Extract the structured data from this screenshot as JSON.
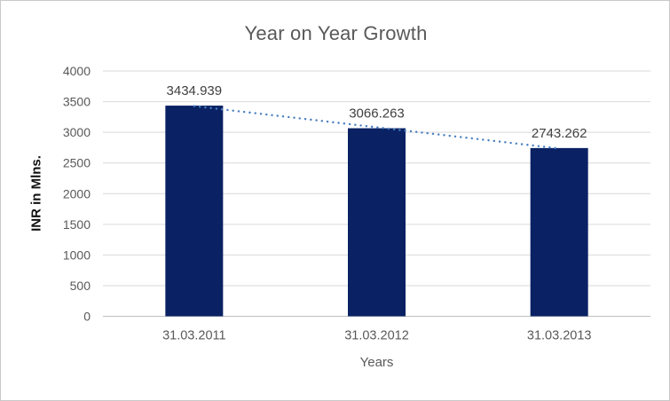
{
  "chart_data": {
    "type": "bar",
    "title": "Year on Year Growth",
    "xlabel": "Years",
    "ylabel": "INR in Mlns.",
    "categories": [
      "31.03.2011",
      "31.03.2012",
      "31.03.2013"
    ],
    "values": [
      3434.939,
      3066.263,
      2743.262
    ],
    "data_labels": [
      "3434.939",
      "3066.263",
      "2743.262"
    ],
    "ylim": [
      0,
      4000
    ],
    "ytick_step": 500,
    "ytick_labels": [
      "0",
      "500",
      "1000",
      "1500",
      "2000",
      "2500",
      "3000",
      "3500",
      "4000"
    ],
    "grid": "horizontal",
    "legend": "none",
    "trendline": {
      "type": "linear",
      "style": "dotted"
    },
    "colors": {
      "bar": "#0a2264",
      "trendline": "#4a7fc1",
      "title_text": "#595959",
      "axis_text": "#595959",
      "data_label_text": "#404040",
      "gridline": "#d9d9d9",
      "axis_line": "#bfbfbf",
      "background": "#ffffff",
      "border": "#c9c9c9"
    }
  }
}
